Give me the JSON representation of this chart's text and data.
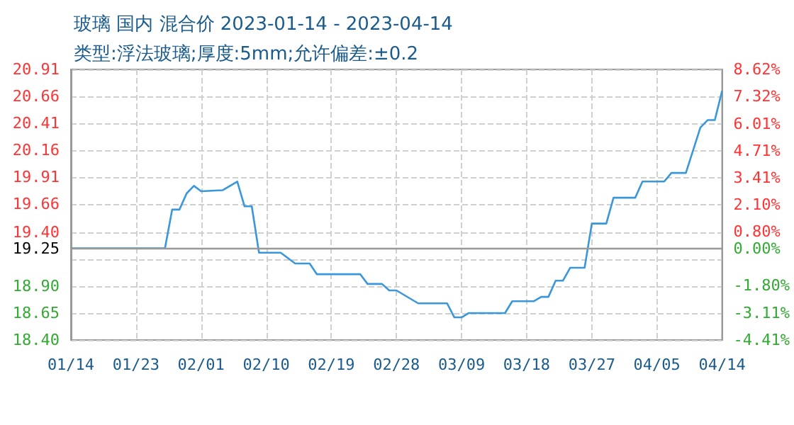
{
  "chart_data": {
    "type": "line",
    "title": "玻璃 国内 混合价 2023-01-14 - 2023-04-14",
    "subtitle": "类型:浮法玻璃;厚度:5mm;允许偏差:±0.2",
    "series": [
      {
        "color": "#3a97d9",
        "x": [
          "2023-01-14",
          "2023-01-27",
          "2023-01-28",
          "2023-01-29",
          "2023-01-30",
          "2023-01-31",
          "2023-02-01",
          "2023-02-04",
          "2023-02-06",
          "2023-02-07",
          "2023-02-08",
          "2023-02-09",
          "2023-02-12",
          "2023-02-14",
          "2023-02-16",
          "2023-02-17",
          "2023-02-23",
          "2023-02-24",
          "2023-02-26",
          "2023-02-27",
          "2023-02-28",
          "2023-03-03",
          "2023-03-07",
          "2023-03-08",
          "2023-03-09",
          "2023-03-10",
          "2023-03-15",
          "2023-03-16",
          "2023-03-19",
          "2023-03-20",
          "2023-03-21",
          "2023-03-22",
          "2023-03-23",
          "2023-03-24",
          "2023-03-26",
          "2023-03-27",
          "2023-03-29",
          "2023-03-30",
          "2023-04-02",
          "2023-04-03",
          "2023-04-06",
          "2023-04-07",
          "2023-04-09",
          "2023-04-11",
          "2023-04-12",
          "2023-04-13",
          "2023-04-14"
        ],
        "values": [
          19.25,
          19.25,
          19.61,
          19.61,
          19.76,
          19.83,
          19.78,
          19.79,
          19.87,
          19.64,
          19.64,
          19.21,
          19.21,
          19.11,
          19.11,
          19.01,
          19.01,
          18.92,
          18.92,
          18.86,
          18.86,
          18.74,
          18.74,
          18.61,
          18.61,
          18.65,
          18.65,
          18.76,
          18.76,
          18.8,
          18.8,
          18.95,
          18.95,
          19.07,
          19.07,
          19.48,
          19.48,
          19.72,
          19.72,
          19.87,
          19.87,
          19.95,
          19.95,
          20.37,
          20.44,
          20.44,
          20.71
        ]
      }
    ],
    "xlim": [
      "2023-01-14",
      "2023-04-14"
    ],
    "xticks": [
      {
        "value": "2023-01-14",
        "label": "01/14"
      },
      {
        "value": "2023-01-23",
        "label": "01/23"
      },
      {
        "value": "2023-02-01",
        "label": "02/01"
      },
      {
        "value": "2023-02-10",
        "label": "02/10"
      },
      {
        "value": "2023-02-19",
        "label": "02/19"
      },
      {
        "value": "2023-02-28",
        "label": "02/28"
      },
      {
        "value": "2023-03-09",
        "label": "03/09"
      },
      {
        "value": "2023-03-18",
        "label": "03/18"
      },
      {
        "value": "2023-03-27",
        "label": "03/27"
      },
      {
        "value": "2023-04-05",
        "label": "04/05"
      },
      {
        "value": "2023-04-14",
        "label": "04/14"
      }
    ],
    "ylim": [
      18.4,
      20.91
    ],
    "yticks": [
      {
        "value": 18.4,
        "label": "18.40"
      },
      {
        "value": 18.65,
        "label": "18.65"
      },
      {
        "value": 18.9,
        "label": "18.90"
      },
      {
        "value": 19.15,
        "label": null
      },
      19.25,
      {
        "value": 19.4,
        "label": "19.40"
      },
      19.66,
      19.91,
      20.16,
      20.41,
      20.66,
      20.91
    ],
    "y2lim": [
      -4.41,
      8.62
    ],
    "y2ticks": [
      {
        "value": -4.41,
        "label": "-4.41%"
      },
      {
        "value": -3.11,
        "label": "-3.11%"
      },
      {
        "value": -1.8,
        "label": "-1.80%"
      },
      {
        "value": 0,
        "label": "0.00%"
      },
      {
        "value": 0.8,
        "label": "0.80%"
      },
      {
        "value": 2.1,
        "label": "2.10%"
      },
      {
        "value": 3.41,
        "label": "3.41%"
      },
      {
        "value": 4.71,
        "label": "4.71%"
      },
      {
        "value": 6.01,
        "label": "6.01%"
      },
      {
        "value": 7.32,
        "label": "7.32%"
      },
      {
        "value": 8.62,
        "label": "8.62%"
      }
    ],
    "ref_lines": [
      {
        "axis": "y",
        "value": 19.25,
        "color": "#999999",
        "line_style": "solid"
      }
    ],
    "grid": true,
    "marker": "none",
    "line_style": "solid"
  }
}
